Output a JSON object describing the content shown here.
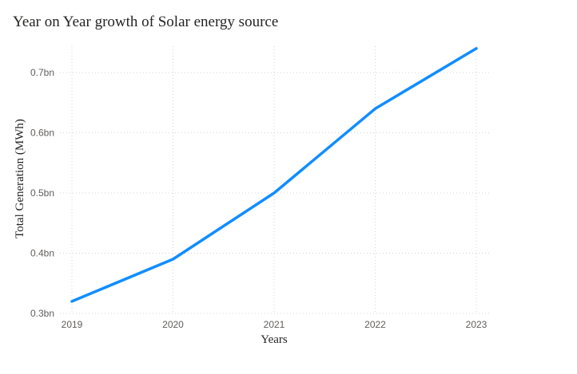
{
  "title": "Year on Year growth of Solar energy source",
  "chart_data": {
    "type": "line",
    "title": "Year on Year growth of Solar energy source",
    "xlabel": "Years",
    "ylabel": "Total Generation (MWh)",
    "categories": [
      "2019",
      "2020",
      "2021",
      "2022",
      "2023"
    ],
    "x_tick_labels": [
      "2019",
      "2020",
      "2021",
      "2022",
      "2023"
    ],
    "y_ticks": [
      0.3,
      0.4,
      0.5,
      0.6,
      0.7
    ],
    "y_tick_labels": [
      "0.3bn",
      "0.4bn",
      "0.5bn",
      "0.6bn",
      "0.7bn"
    ],
    "ylim": [
      0.3,
      0.7
    ],
    "unit": "bn",
    "series": [
      {
        "values": [
          0.32,
          0.39,
          0.5,
          0.64,
          0.74
        ],
        "color": "#118DFF"
      }
    ],
    "grid": true,
    "legend": "none"
  }
}
